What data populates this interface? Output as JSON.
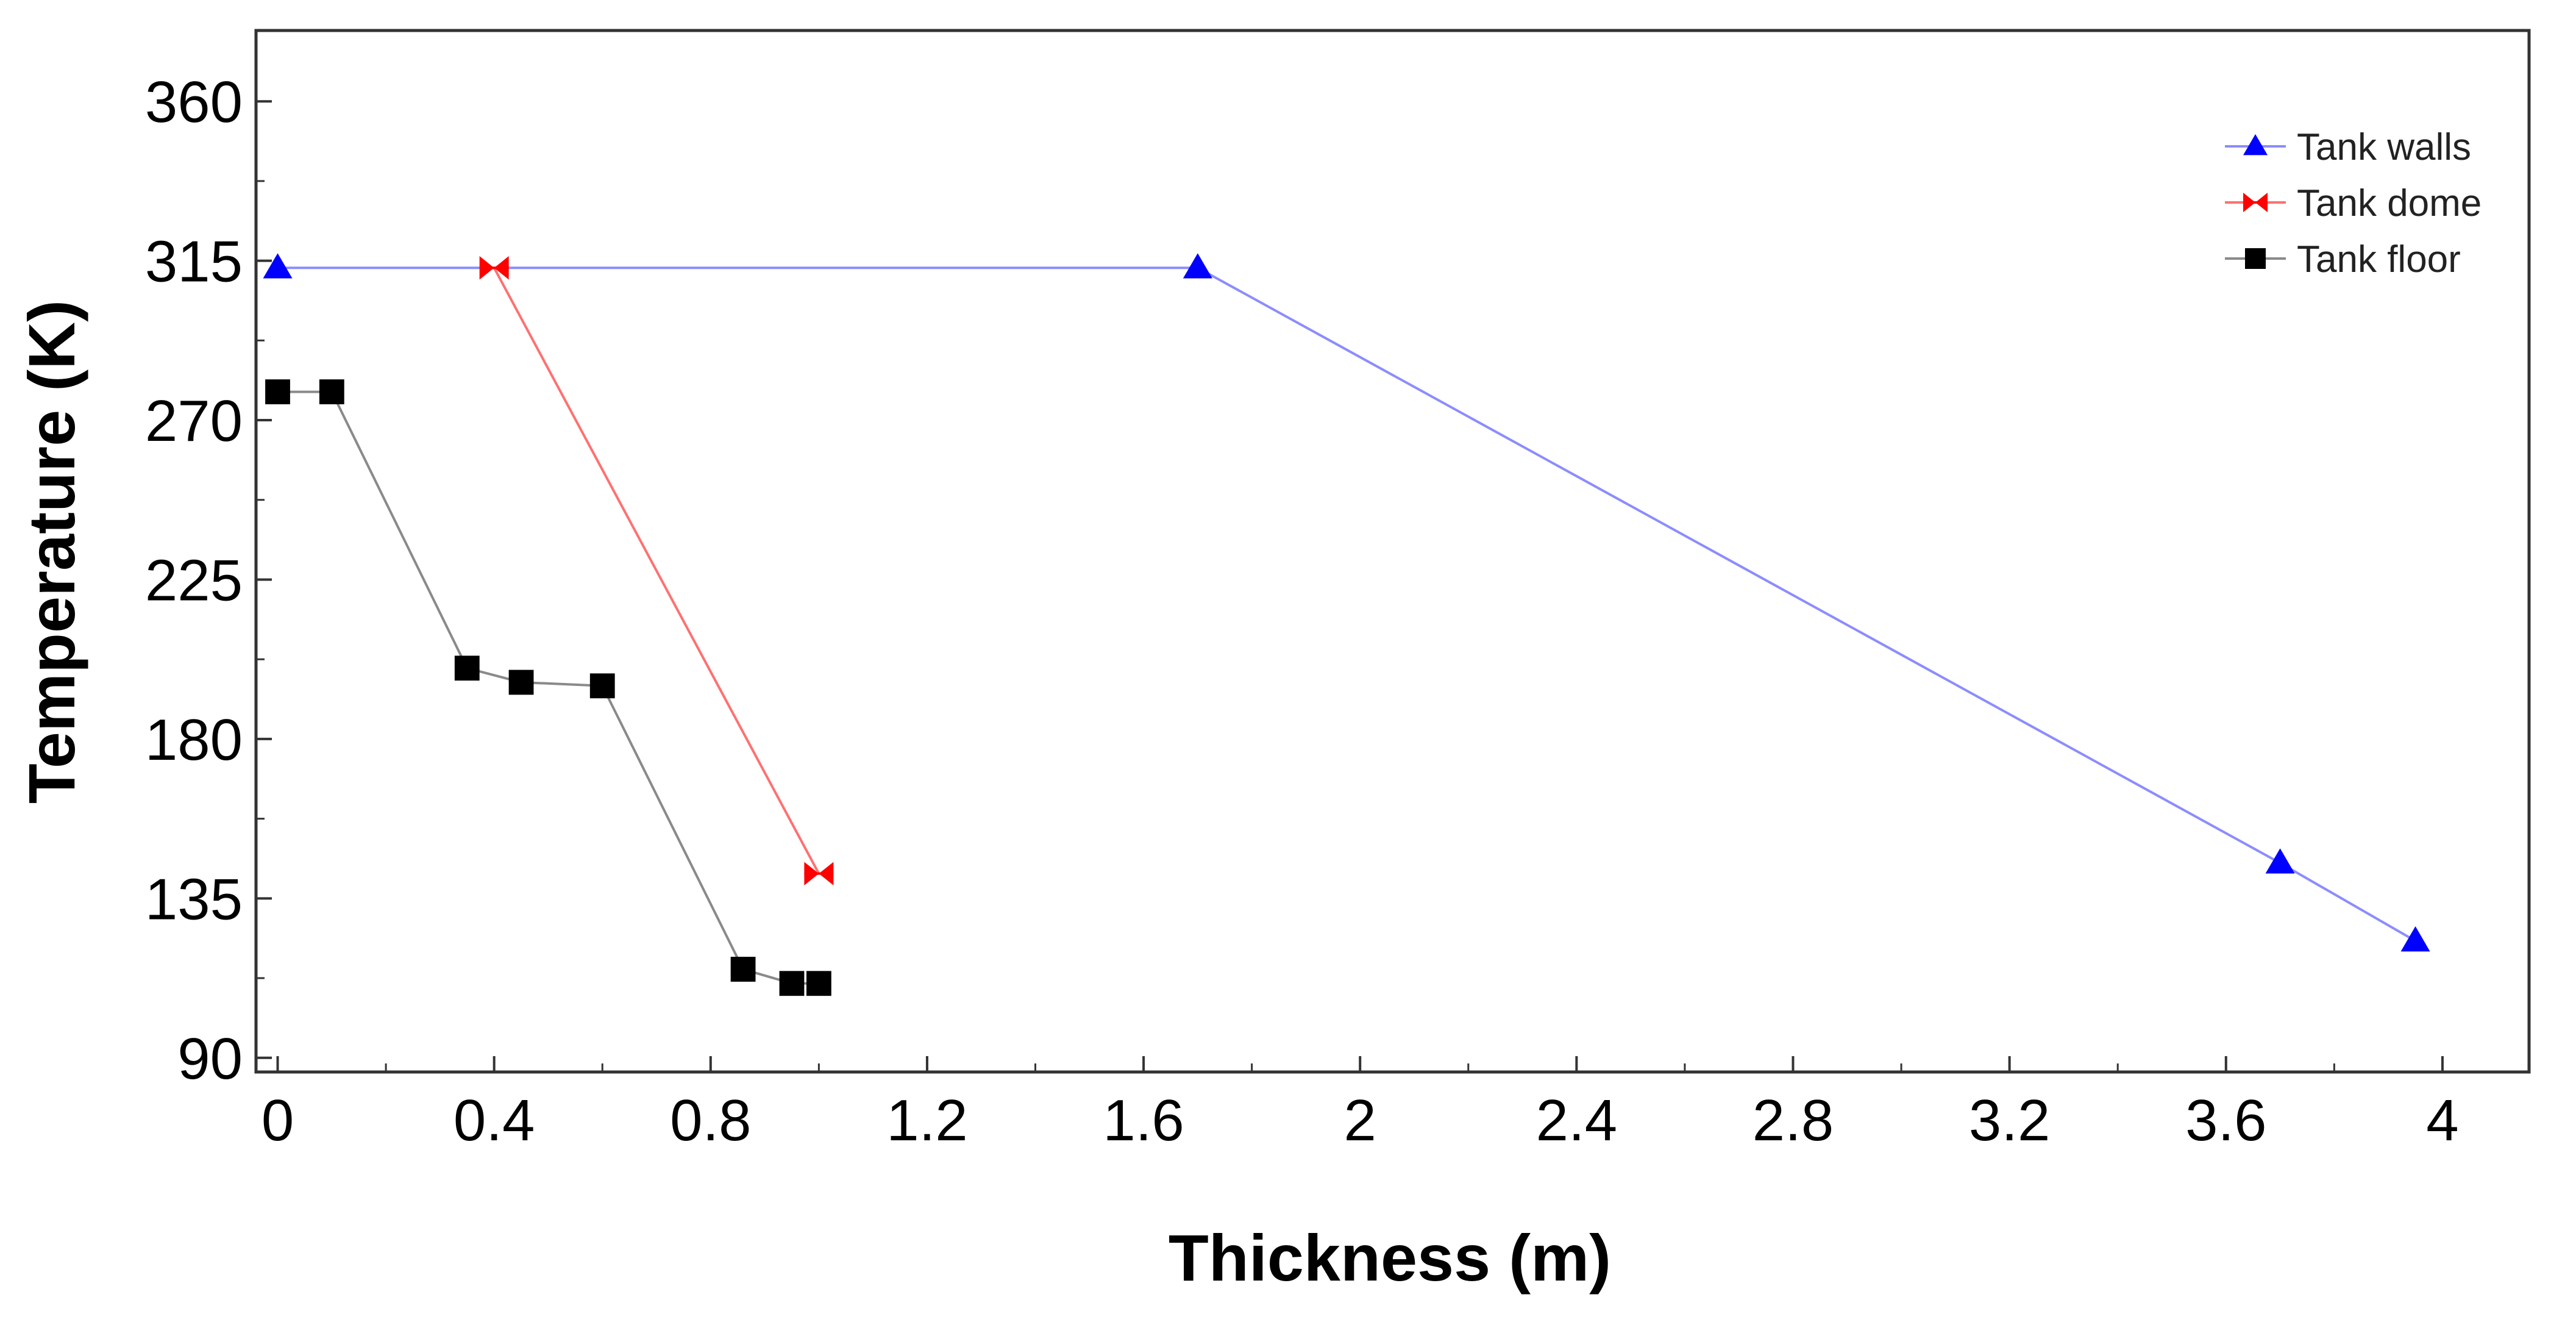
{
  "chart_data": {
    "type": "line",
    "title": "",
    "xlabel": "Thickness (m)",
    "ylabel": "Temperature (K)",
    "xlim": [
      -0.04,
      4.16
    ],
    "ylim": [
      86,
      380
    ],
    "xticks": [
      0,
      0.4,
      0.8,
      1.2,
      1.6,
      2,
      2.4,
      2.8,
      3.2,
      3.6,
      4
    ],
    "xtick_labels": [
      "0",
      "0.4",
      "0.8",
      "1.2",
      "1.6",
      "2",
      "2.4",
      "2.8",
      "3.2",
      "3.6",
      "4"
    ],
    "yticks": [
      90,
      135,
      180,
      225,
      270,
      315,
      360
    ],
    "ytick_labels": [
      "90",
      "135",
      "180",
      "225",
      "270",
      "315",
      "360"
    ],
    "grid": false,
    "legend_position": "top-right",
    "series": [
      {
        "name": "Tank walls",
        "color": "#0000ff",
        "line_color": "#8c8cff",
        "marker": "triangle",
        "x": [
          0,
          1.7,
          3.7,
          3.95
        ],
        "y": [
          313,
          313,
          145,
          123
        ]
      },
      {
        "name": "Tank dome",
        "color": "#ff0000",
        "line_color": "#ff7070",
        "marker": "bowtie",
        "x": [
          0.4,
          1.0
        ],
        "y": [
          313,
          142
        ]
      },
      {
        "name": "Tank floor",
        "color": "#000000",
        "line_color": "#8a8a8a",
        "marker": "square",
        "x": [
          0,
          0.1,
          0.35,
          0.45,
          0.6,
          0.86,
          0.95,
          1.0
        ],
        "y": [
          278,
          278,
          200,
          196,
          195,
          115,
          111,
          111
        ]
      }
    ]
  }
}
